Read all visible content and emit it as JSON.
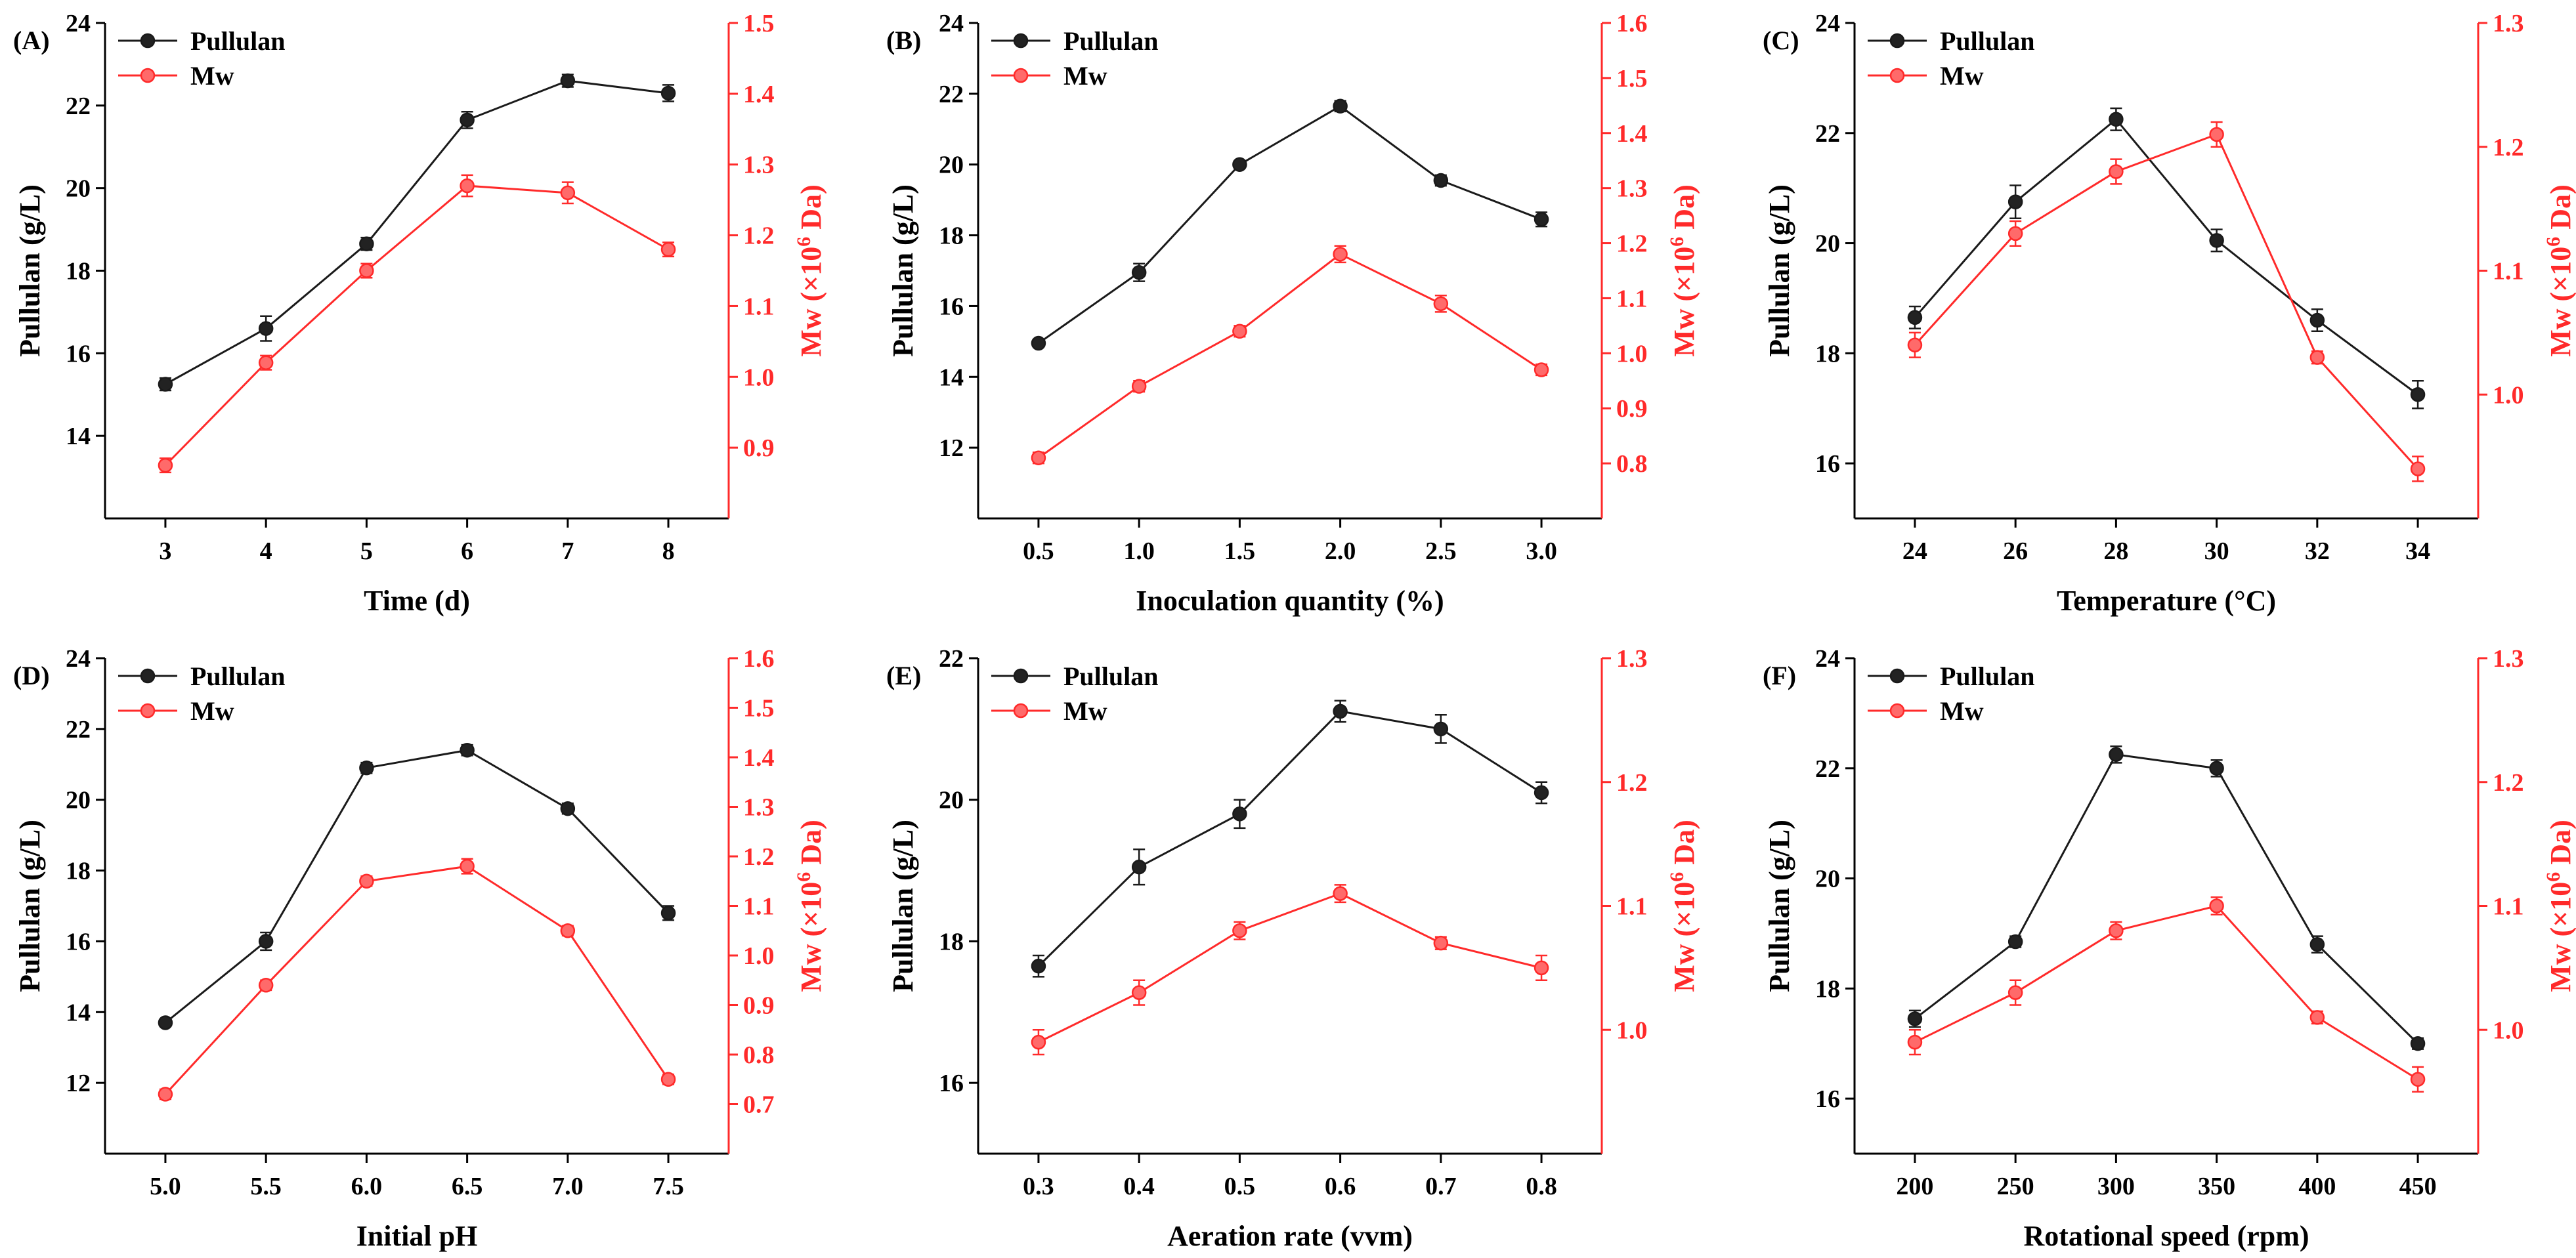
{
  "colors": {
    "pullulan": "#1a1a1a",
    "mw": "#ff2a2a",
    "axis": "#000000"
  },
  "legend": {
    "pullulan": "Pullulan",
    "mw": "Mw"
  },
  "chart_data": [
    {
      "panel": "(A)",
      "type": "line",
      "xlabel": "Time (d)",
      "ylabel": "Pullulan (g/L)",
      "y2label": "Mw (×10^6 Da)",
      "x_tick_labels": [
        "3",
        "4",
        "5",
        "6",
        "7",
        "8"
      ],
      "x": [
        3,
        4,
        5,
        6,
        7,
        8
      ],
      "xlim": [
        2.4,
        8.6
      ],
      "ylim": [
        12,
        24
      ],
      "yticks": [
        14,
        16,
        18,
        20,
        22,
        24
      ],
      "y2lim": [
        0.8,
        1.5
      ],
      "y2ticks": [
        0.9,
        1.0,
        1.1,
        1.2,
        1.3,
        1.4,
        1.5
      ],
      "series": [
        {
          "name": "Pullulan",
          "axis": "left",
          "values": [
            15.25,
            16.6,
            18.65,
            21.65,
            22.6,
            22.3
          ],
          "errors": [
            0.15,
            0.3,
            0.15,
            0.2,
            0.15,
            0.2
          ]
        },
        {
          "name": "Mw",
          "axis": "right",
          "values": [
            0.875,
            1.02,
            1.15,
            1.27,
            1.26,
            1.18
          ],
          "errors": [
            0.01,
            0.01,
            0.01,
            0.015,
            0.015,
            0.01
          ]
        }
      ]
    },
    {
      "panel": "(B)",
      "type": "line",
      "xlabel": "Inoculation quantity (%)",
      "ylabel": "Pullulan (g/L)",
      "y2label": "Mw (×10^6 Da)",
      "x_tick_labels": [
        "0.5",
        "1.0",
        "1.5",
        "2.0",
        "2.5",
        "3.0"
      ],
      "x": [
        0.5,
        1.0,
        1.5,
        2.0,
        2.5,
        3.0
      ],
      "xlim": [
        0.2,
        3.3
      ],
      "ylim": [
        10,
        24
      ],
      "yticks": [
        12,
        14,
        16,
        18,
        20,
        22,
        24
      ],
      "y2lim": [
        0.7,
        1.6
      ],
      "y2ticks": [
        0.8,
        0.9,
        1.0,
        1.1,
        1.2,
        1.3,
        1.4,
        1.5,
        1.6
      ],
      "series": [
        {
          "name": "Pullulan",
          "axis": "left",
          "values": [
            14.95,
            16.95,
            20.0,
            21.65,
            19.55,
            18.45
          ],
          "errors": [
            0.1,
            0.25,
            0.1,
            0.15,
            0.15,
            0.2
          ]
        },
        {
          "name": "Mw",
          "axis": "right",
          "values": [
            0.81,
            0.94,
            1.04,
            1.18,
            1.09,
            0.97
          ],
          "errors": [
            0.01,
            0.01,
            0.01,
            0.015,
            0.015,
            0.01
          ]
        }
      ]
    },
    {
      "panel": "(C)",
      "type": "line",
      "xlabel": "Temperature (°C)",
      "ylabel": "Pullulan (g/L)",
      "y2label": "Mw (×10^6 Da)",
      "x_tick_labels": [
        "24",
        "26",
        "28",
        "30",
        "32",
        "34"
      ],
      "x": [
        24,
        26,
        28,
        30,
        32,
        34
      ],
      "xlim": [
        22.8,
        35.2
      ],
      "ylim": [
        15,
        24
      ],
      "yticks": [
        16,
        18,
        20,
        22,
        24
      ],
      "y2lim": [
        0.9,
        1.3
      ],
      "y2ticks": [
        1.0,
        1.1,
        1.2,
        1.3
      ],
      "series": [
        {
          "name": "Pullulan",
          "axis": "left",
          "values": [
            18.65,
            20.75,
            22.25,
            20.05,
            18.6,
            17.25
          ],
          "errors": [
            0.2,
            0.3,
            0.2,
            0.2,
            0.2,
            0.25
          ]
        },
        {
          "name": "Mw",
          "axis": "right",
          "values": [
            1.04,
            1.13,
            1.18,
            1.21,
            1.03,
            0.94
          ],
          "errors": [
            0.01,
            0.01,
            0.01,
            0.01,
            0.005,
            0.01
          ]
        }
      ]
    },
    {
      "panel": "(D)",
      "type": "line",
      "xlabel": "Initial pH",
      "ylabel": "Pullulan (g/L)",
      "y2label": "Mw (×10^6 Da)",
      "x_tick_labels": [
        "5.0",
        "5.5",
        "6.0",
        "6.5",
        "7.0",
        "7.5"
      ],
      "x": [
        5.0,
        5.5,
        6.0,
        6.5,
        7.0,
        7.5
      ],
      "xlim": [
        4.7,
        7.8
      ],
      "ylim": [
        10,
        24
      ],
      "yticks": [
        12,
        14,
        16,
        18,
        20,
        22,
        24
      ],
      "y2lim": [
        0.6,
        1.6
      ],
      "y2ticks": [
        0.7,
        0.8,
        0.9,
        1.0,
        1.1,
        1.2,
        1.3,
        1.4,
        1.5,
        1.6
      ],
      "series": [
        {
          "name": "Pullulan",
          "axis": "left",
          "values": [
            13.7,
            16.0,
            20.9,
            21.4,
            19.75,
            16.8
          ],
          "errors": [
            0.1,
            0.25,
            0.15,
            0.15,
            0.15,
            0.2
          ]
        },
        {
          "name": "Mw",
          "axis": "right",
          "values": [
            0.72,
            0.94,
            1.15,
            1.18,
            1.05,
            0.75
          ],
          "errors": [
            0.01,
            0.01,
            0.01,
            0.015,
            0.01,
            0.01
          ]
        }
      ]
    },
    {
      "panel": "(E)",
      "type": "line",
      "xlabel": "Aeration rate (vvm)",
      "ylabel": "Pullulan (g/L)",
      "y2label": "Mw (×10^6 Da)",
      "x_tick_labels": [
        "0.3",
        "0.4",
        "0.5",
        "0.6",
        "0.7",
        "0.8"
      ],
      "x": [
        0.3,
        0.4,
        0.5,
        0.6,
        0.7,
        0.8
      ],
      "xlim": [
        0.24,
        0.86
      ],
      "ylim": [
        15,
        22
      ],
      "yticks": [
        16,
        18,
        20,
        22
      ],
      "y2lim": [
        0.9,
        1.3
      ],
      "y2ticks": [
        1.0,
        1.1,
        1.2,
        1.3
      ],
      "series": [
        {
          "name": "Pullulan",
          "axis": "left",
          "values": [
            17.65,
            19.05,
            19.8,
            21.25,
            21.0,
            20.1
          ],
          "errors": [
            0.15,
            0.25,
            0.2,
            0.15,
            0.2,
            0.15
          ]
        },
        {
          "name": "Mw",
          "axis": "right",
          "values": [
            0.99,
            1.03,
            1.08,
            1.11,
            1.07,
            1.05
          ],
          "errors": [
            0.01,
            0.01,
            0.007,
            0.007,
            0.005,
            0.01
          ]
        }
      ]
    },
    {
      "panel": "(F)",
      "type": "line",
      "xlabel": "Rotational speed (rpm)",
      "ylabel": "Pullulan (g/L)",
      "y2label": "Mw (×10^6 Da)",
      "x_tick_labels": [
        "200",
        "250",
        "300",
        "350",
        "400",
        "450"
      ],
      "x": [
        200,
        250,
        300,
        350,
        400,
        450
      ],
      "xlim": [
        170,
        480
      ],
      "ylim": [
        15,
        24
      ],
      "yticks": [
        16,
        18,
        20,
        22,
        24
      ],
      "y2lim": [
        0.9,
        1.3
      ],
      "y2ticks": [
        1.0,
        1.1,
        1.2,
        1.3
      ],
      "series": [
        {
          "name": "Pullulan",
          "axis": "left",
          "values": [
            17.45,
            18.85,
            22.25,
            22.0,
            18.8,
            17.0
          ],
          "errors": [
            0.15,
            0.1,
            0.15,
            0.15,
            0.15,
            0.1
          ]
        },
        {
          "name": "Mw",
          "axis": "right",
          "values": [
            0.99,
            1.03,
            1.08,
            1.1,
            1.01,
            0.96
          ],
          "errors": [
            0.01,
            0.01,
            0.007,
            0.007,
            0.005,
            0.01
          ]
        }
      ]
    }
  ]
}
